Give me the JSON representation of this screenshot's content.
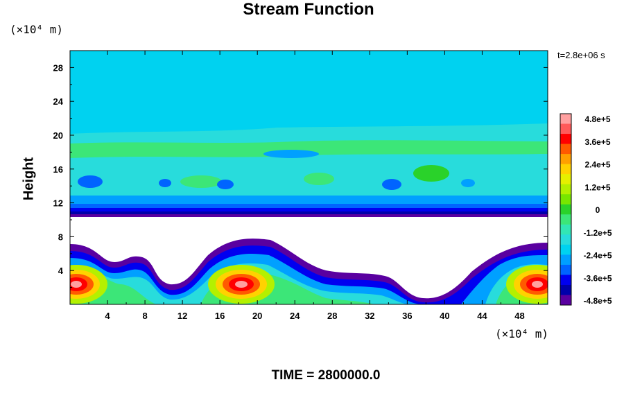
{
  "chart_data": {
    "type": "heatmap",
    "title": "Stream Function",
    "ylabel": "Height",
    "xlabel": "",
    "y_unit_label": "(×10⁴ m)",
    "x_unit_label": "(×10⁴ m)",
    "time_label": "t=2.8e+06 s",
    "footer": "TIME = 2800000.0",
    "xlim": [
      0,
      51
    ],
    "ylim": [
      0,
      30
    ],
    "x_ticks": [
      "4",
      "8",
      "12",
      "16",
      "20",
      "24",
      "28",
      "32",
      "36",
      "40",
      "44",
      "48"
    ],
    "y_ticks": [
      "4",
      "8",
      "12",
      "16",
      "20",
      "24",
      "28"
    ],
    "colorbar": {
      "min": -480000,
      "max": 480000,
      "labels": [
        "4.8e+5",
        "3.6e+5",
        "2.4e+5",
        "1.2e+5",
        "0",
        "-1.2e+5",
        "-2.4e+5",
        "-3.6e+5",
        "-4.8e+5"
      ],
      "colors": [
        "#ffa0a0",
        "#ff5a5a",
        "#ff0000",
        "#ff5a00",
        "#ffa000",
        "#ffd200",
        "#e6f000",
        "#b4f000",
        "#78e600",
        "#2ad22a",
        "#3ce678",
        "#32e6b4",
        "#28dcdc",
        "#00d2f0",
        "#00a0ff",
        "#0064ff",
        "#0000f0",
        "#0000aa",
        "#5a00a0"
      ]
    },
    "notes": "Lower layer (0–8 ×10⁴ m): positive stream-function cores near x≈1, 18–19 and 50 at height≈2.5; upper layer (10.5–20 ×10⁴ m) shows weak mid-range values; above 20 uniform; white gap between layers."
  }
}
